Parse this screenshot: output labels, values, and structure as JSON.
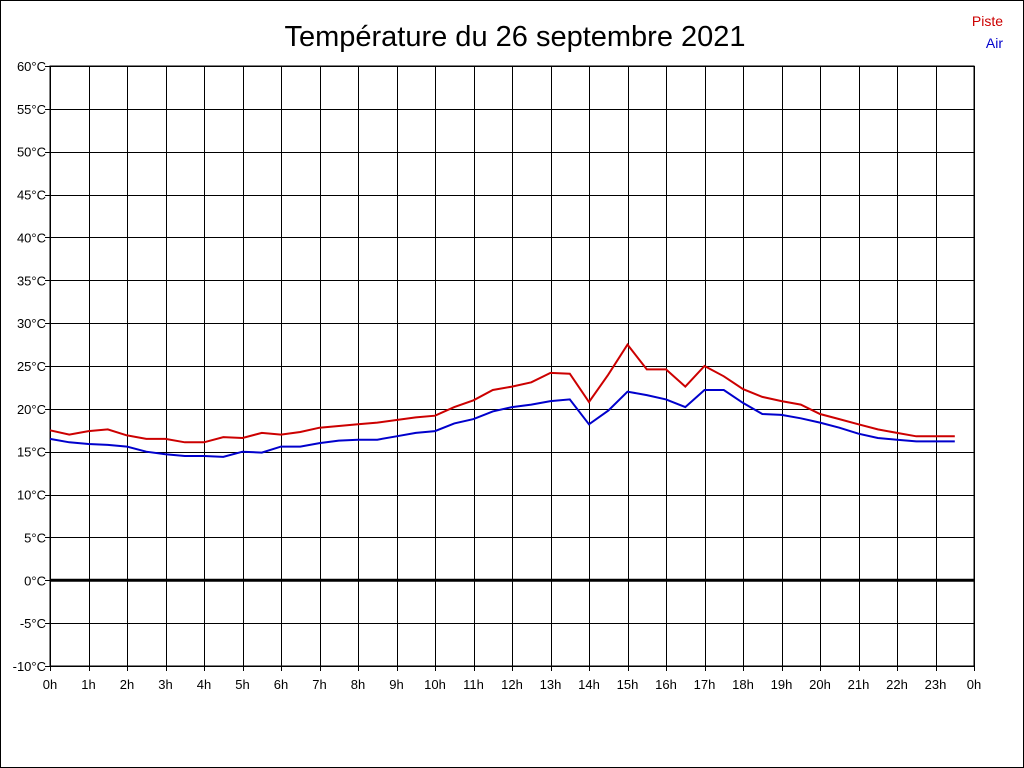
{
  "chart_data": {
    "type": "line",
    "title": "Température du 26 septembre 2021",
    "xlabel": "",
    "ylabel": "",
    "x_tick_labels": [
      "0h",
      "1h",
      "2h",
      "3h",
      "4h",
      "5h",
      "6h",
      "7h",
      "8h",
      "9h",
      "10h",
      "11h",
      "12h",
      "13h",
      "14h",
      "15h",
      "16h",
      "17h",
      "18h",
      "19h",
      "20h",
      "21h",
      "22h",
      "23h",
      "0h"
    ],
    "y_tick_labels": [
      "60°C",
      "55°C",
      "50°C",
      "45°C",
      "40°C",
      "35°C",
      "30°C",
      "25°C",
      "20°C",
      "15°C",
      "10°C",
      "5°C",
      "0°C",
      "-5°C",
      "-10°C"
    ],
    "xlim": [
      0,
      24
    ],
    "ylim": [
      -10,
      60
    ],
    "grid": true,
    "legend_position": "top-right",
    "zero_line": 0,
    "colors": {
      "piste": "#cc0000",
      "air": "#0000cc",
      "grid": "#000000"
    },
    "series": [
      {
        "name": "Piste",
        "x": [
          0,
          0.5,
          1,
          1.5,
          2,
          2.5,
          3,
          3.5,
          4,
          4.5,
          5,
          5.5,
          6,
          6.5,
          7,
          7.5,
          8,
          8.5,
          9,
          9.5,
          10,
          10.5,
          11,
          11.5,
          12,
          12.5,
          13,
          13.5,
          14,
          14.5,
          15,
          15.5,
          16,
          16.5,
          17,
          17.5,
          18,
          18.5,
          19,
          19.5,
          20,
          20.5,
          21,
          21.5,
          22,
          22.5,
          23,
          23.5
        ],
        "values": [
          17.5,
          17.0,
          17.4,
          17.6,
          16.9,
          16.5,
          16.5,
          16.1,
          16.1,
          16.7,
          16.6,
          17.2,
          17.0,
          17.3,
          17.8,
          18.0,
          18.2,
          18.4,
          18.7,
          19.0,
          19.2,
          20.2,
          21.0,
          22.2,
          22.6,
          23.1,
          24.2,
          24.1,
          20.8,
          24.0,
          27.5,
          24.6,
          24.6,
          22.6,
          25.0,
          23.8,
          22.3,
          21.4,
          20.9,
          20.5,
          19.4,
          18.8,
          18.2,
          17.6,
          17.2,
          16.8,
          16.8,
          16.8
        ]
      },
      {
        "name": "Air",
        "x": [
          0,
          0.5,
          1,
          1.5,
          2,
          2.5,
          3,
          3.5,
          4,
          4.5,
          5,
          5.5,
          6,
          6.5,
          7,
          7.5,
          8,
          8.5,
          9,
          9.5,
          10,
          10.5,
          11,
          11.5,
          12,
          12.5,
          13,
          13.5,
          14,
          14.5,
          15,
          15.5,
          16,
          16.5,
          17,
          17.5,
          18,
          18.5,
          19,
          19.5,
          20,
          20.5,
          21,
          21.5,
          22,
          22.5,
          23,
          23.5
        ],
        "values": [
          16.5,
          16.1,
          15.9,
          15.8,
          15.6,
          15.0,
          14.7,
          14.5,
          14.5,
          14.4,
          15.0,
          14.9,
          15.6,
          15.6,
          16.0,
          16.3,
          16.4,
          16.4,
          16.8,
          17.2,
          17.4,
          18.3,
          18.8,
          19.7,
          20.2,
          20.5,
          20.9,
          21.1,
          18.2,
          19.8,
          22.0,
          21.6,
          21.1,
          20.2,
          22.2,
          22.2,
          20.7,
          19.4,
          19.3,
          18.9,
          18.4,
          17.8,
          17.1,
          16.6,
          16.4,
          16.2,
          16.2,
          16.2
        ]
      }
    ]
  }
}
